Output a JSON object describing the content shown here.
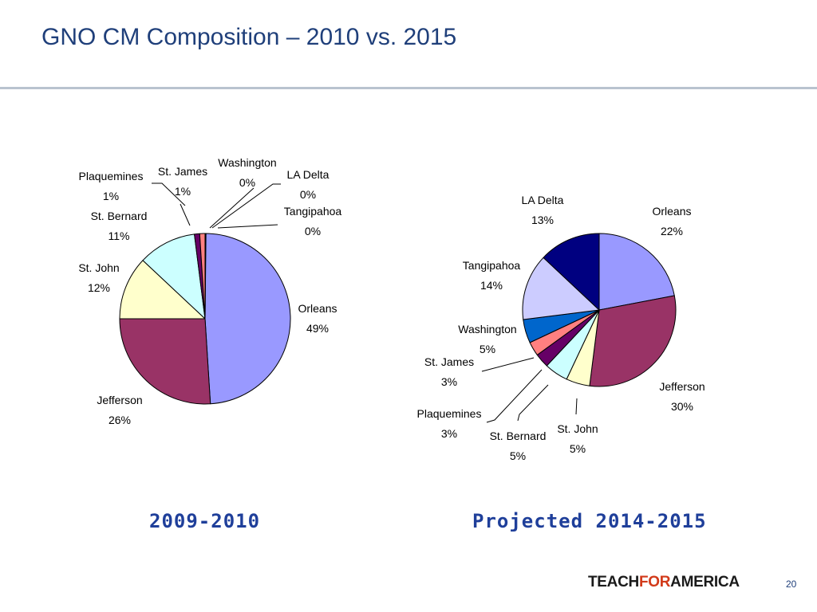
{
  "slide": {
    "title": "GNO CM Composition – 2010 vs. 2015",
    "page_number": "20",
    "logo": {
      "part1": "TEACH",
      "part2": "FOR",
      "part3": "AMERICA"
    }
  },
  "colors": {
    "Orleans": "#9999ff",
    "Jefferson": "#993366",
    "St. John": "#ffffcc",
    "St. Bernard": "#ccffff",
    "Plaquemines": "#660066",
    "St. James": "#ff8080",
    "Washington": "#0066cc",
    "Tangipahoa": "#ccccff",
    "LA Delta": "#000080"
  },
  "chart_data": [
    {
      "type": "pie",
      "caption": "2009-2010",
      "categories": [
        "Orleans",
        "Jefferson",
        "St. John",
        "St. Bernard",
        "Plaquemines",
        "St. James",
        "Washington",
        "LA Delta",
        "Tangipahoa"
      ],
      "values": [
        49,
        26,
        12,
        11,
        1,
        1,
        0,
        0,
        0
      ],
      "labels": [
        "49%",
        "26%",
        "12%",
        "11%",
        "1%",
        "1%",
        "0%",
        "0%",
        "0%"
      ]
    },
    {
      "type": "pie",
      "caption": "Projected 2014-2015",
      "categories": [
        "Orleans",
        "Jefferson",
        "St. John",
        "St. Bernard",
        "Plaquemines",
        "St. James",
        "Washington",
        "Tangipahoa",
        "LA Delta"
      ],
      "values": [
        22,
        30,
        5,
        5,
        3,
        3,
        5,
        14,
        13
      ],
      "labels": [
        "22%",
        "30%",
        "5%",
        "5%",
        "3%",
        "3%",
        "5%",
        "14%",
        "13%"
      ]
    }
  ]
}
